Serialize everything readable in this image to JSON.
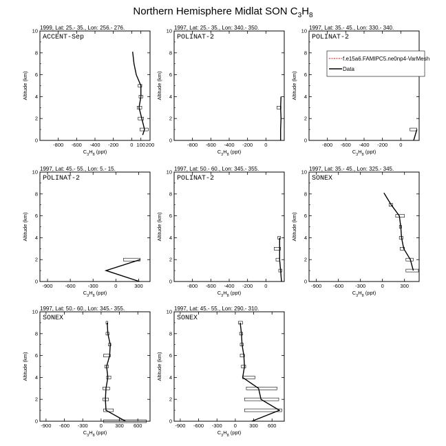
{
  "figure": {
    "title_main": "Northern Hemisphere Midlat SON C",
    "title_sub1": "3",
    "title_mid": "H",
    "title_sub2": "8"
  },
  "legend": {
    "entries": [
      {
        "label": "f.e15a6.FAMIPC5.ne0np4-VarMesh",
        "color": "#ff0000",
        "dash": true
      },
      {
        "label": "Data",
        "color": "#000000",
        "dash": false
      }
    ]
  },
  "chart_data": [
    {
      "type": "line",
      "header": "1999, Lat: 25.- 35., Lon: 256.- 276.",
      "campaign": "ACCENT-Sep",
      "xlabel": "C3H8 (ppt)",
      "ylabel": "Altitude (km)",
      "xlim": [
        -1000,
        200
      ],
      "ylim": [
        0,
        10
      ],
      "xticks": [
        -800,
        -600,
        -400,
        -200,
        0,
        100,
        200
      ],
      "xtick_labels": [
        "-800",
        "-600",
        "-400",
        "-200",
        "0",
        "100",
        "200"
      ],
      "yticks": [
        0,
        2,
        4,
        6,
        8,
        10
      ],
      "profile": [
        [
          120,
          0.5
        ],
        [
          140,
          1
        ],
        [
          110,
          2
        ],
        [
          80,
          3
        ],
        [
          100,
          4
        ],
        [
          100,
          5
        ],
        [
          50,
          6
        ],
        [
          25,
          7
        ],
        [
          10,
          8.1
        ]
      ],
      "bars": [
        [
          90,
          180,
          1
        ],
        [
          70,
          130,
          2
        ],
        [
          60,
          110,
          3
        ],
        [
          80,
          120,
          4
        ],
        [
          70,
          110,
          5
        ]
      ]
    },
    {
      "type": "line",
      "header": "1997, Lat: 25.- 35., Lon: 340.- 350.",
      "campaign": "POLINAT-2",
      "xlabel": "C3H8 (ppt)",
      "ylabel": "Altitude (km)",
      "xlim": [
        -1000,
        200
      ],
      "ylim": [
        0,
        10
      ],
      "xticks": [
        -800,
        -600,
        -400,
        -200,
        0
      ],
      "xtick_labels": [
        "-800",
        "-600",
        "-400",
        "-200",
        "0"
      ],
      "yticks": [
        0,
        2,
        4,
        6,
        8,
        10
      ],
      "profile": [
        [
          160,
          0
        ],
        [
          160,
          1
        ],
        [
          165,
          2
        ],
        [
          160,
          3
        ],
        [
          165,
          4
        ]
      ],
      "bars": [
        [
          120,
          165,
          3
        ]
      ]
    },
    {
      "type": "line",
      "header": "1997, Lat: 35.- 45., Lon: 330.- 340.",
      "campaign": "POLINAT-2",
      "xlabel": "C3H8 (ppt)",
      "ylabel": "Altitude (km)",
      "xlim": [
        -1000,
        200
      ],
      "ylim": [
        0,
        10
      ],
      "xticks": [
        -800,
        -600,
        -400,
        -200,
        0
      ],
      "xtick_labels": [
        "-800",
        "-600",
        "-400",
        "-200",
        "0"
      ],
      "yticks": [
        0,
        2,
        4,
        6,
        8,
        10
      ],
      "profile": [
        [
          140,
          0
        ],
        [
          175,
          1
        ]
      ],
      "bars": [
        [
          100,
          175,
          1
        ]
      ],
      "has_legend": true
    },
    {
      "type": "line",
      "header": "1997, Lat: 45.- 55., Lon: 5.- 15.",
      "campaign": "POLINAT-2",
      "xlabel": "C3H8 (ppt)",
      "ylabel": "Altitude (km)",
      "xlim": [
        -1000,
        450
      ],
      "ylim": [
        0,
        10
      ],
      "xticks": [
        -900,
        -600,
        -300,
        0,
        300
      ],
      "xtick_labels": [
        "-900",
        "-600",
        "-300",
        "0",
        "300"
      ],
      "yticks": [
        0,
        2,
        4,
        6,
        8,
        10
      ],
      "profile": [
        [
          310,
          0
        ],
        [
          -130,
          1
        ],
        [
          320,
          2
        ]
      ],
      "bars": [
        [
          100,
          320,
          2
        ]
      ]
    },
    {
      "type": "line",
      "header": "1997, Lat: 50.- 60., Lon: 345.- 355.",
      "campaign": "POLINAT-2",
      "xlabel": "C3H8 (ppt)",
      "ylabel": "Altitude (km)",
      "xlim": [
        -1000,
        200
      ],
      "ylim": [
        0,
        10
      ],
      "xticks": [
        -800,
        -600,
        -400,
        -200,
        0
      ],
      "xtick_labels": [
        "-800",
        "-600",
        "-400",
        "-200",
        "0"
      ],
      "yticks": [
        0,
        2,
        4,
        6,
        8,
        10
      ],
      "profile": [
        [
          170,
          0
        ],
        [
          160,
          1
        ],
        [
          150,
          2
        ],
        [
          150,
          3
        ],
        [
          150,
          4
        ]
      ],
      "bars": [
        [
          140,
          175,
          1
        ],
        [
          110,
          150,
          2
        ],
        [
          90,
          160,
          3
        ],
        [
          130,
          160,
          4
        ]
      ]
    },
    {
      "type": "line",
      "header": "1997, Lat: 35.- 45., Lon: 325.- 345.",
      "campaign": "SONEX",
      "xlabel": "C3H8 (ppt)",
      "ylabel": "Altitude (km)",
      "xlim": [
        -1000,
        500
      ],
      "ylim": [
        0,
        10
      ],
      "xticks": [
        -900,
        -600,
        -300,
        0,
        300
      ],
      "xtick_labels": [
        "-900",
        "-600",
        "-300",
        "0",
        "300"
      ],
      "yticks": [
        0,
        2,
        4,
        6,
        8,
        10
      ],
      "profile": [
        [
          420,
          1
        ],
        [
          380,
          2
        ],
        [
          290,
          3
        ],
        [
          260,
          4
        ],
        [
          250,
          5
        ],
        [
          230,
          6
        ],
        [
          120,
          7
        ],
        [
          20,
          8.1
        ]
      ],
      "bars": [
        [
          320,
          490,
          1
        ],
        [
          320,
          420,
          2
        ],
        [
          240,
          300,
          3
        ],
        [
          230,
          280,
          4
        ],
        [
          230,
          260,
          5
        ],
        [
          180,
          300,
          6
        ],
        [
          90,
          140,
          7
        ]
      ]
    },
    {
      "type": "line",
      "header": "1997, Lat: 50.- 60., Lon: 345.- 355.",
      "campaign": "SONEX",
      "xlabel": "C3H8 (ppt)",
      "ylabel": "Altitude (km)",
      "xlim": [
        -1000,
        800
      ],
      "ylim": [
        0,
        10
      ],
      "xticks": [
        -900,
        -600,
        -300,
        0,
        300,
        600
      ],
      "xtick_labels": [
        "-900",
        "-600",
        "-300",
        "0",
        "300",
        "600"
      ],
      "yticks": [
        0,
        2,
        4,
        6,
        8,
        10
      ],
      "profile": [
        [
          400,
          0
        ],
        [
          80,
          1
        ],
        [
          70,
          2
        ],
        [
          80,
          3
        ],
        [
          110,
          4
        ],
        [
          90,
          5
        ],
        [
          140,
          6
        ],
        [
          150,
          7
        ],
        [
          110,
          8
        ],
        [
          100,
          9
        ]
      ],
      "bars": [
        [
          40,
          740,
          0
        ],
        [
          40,
          200,
          1
        ],
        [
          30,
          120,
          2
        ],
        [
          30,
          140,
          3
        ],
        [
          90,
          160,
          4
        ],
        [
          60,
          120,
          5
        ],
        [
          40,
          150,
          6
        ],
        [
          120,
          160,
          7
        ],
        [
          80,
          130,
          8
        ],
        [
          80,
          110,
          9
        ]
      ]
    },
    {
      "type": "line",
      "header": "1997, Lat: 45.- 55., Lon: 290.- 310.",
      "campaign": "SONEX",
      "xlabel": "C3H8 (ppt)",
      "ylabel": "Altitude (km)",
      "xlim": [
        -1000,
        800
      ],
      "ylim": [
        0,
        10
      ],
      "xticks": [
        -900,
        -600,
        -300,
        0,
        300,
        600
      ],
      "xtick_labels": [
        "-900",
        "-600",
        "-300",
        "0",
        "300",
        "600"
      ],
      "yticks": [
        0,
        2,
        4,
        6,
        8,
        10
      ],
      "profile": [
        [
          270,
          0
        ],
        [
          720,
          1
        ],
        [
          420,
          2
        ],
        [
          380,
          3
        ],
        [
          120,
          4
        ],
        [
          150,
          5
        ],
        [
          140,
          6
        ],
        [
          110,
          7
        ],
        [
          100,
          8
        ],
        [
          80,
          9
        ]
      ],
      "bars": [
        [
          150,
          760,
          1
        ],
        [
          150,
          710,
          2
        ],
        [
          180,
          680,
          3
        ],
        [
          120,
          320,
          4
        ],
        [
          100,
          170,
          5
        ],
        [
          80,
          150,
          6
        ],
        [
          80,
          130,
          7
        ],
        [
          70,
          120,
          8
        ],
        [
          50,
          120,
          9
        ]
      ]
    }
  ]
}
